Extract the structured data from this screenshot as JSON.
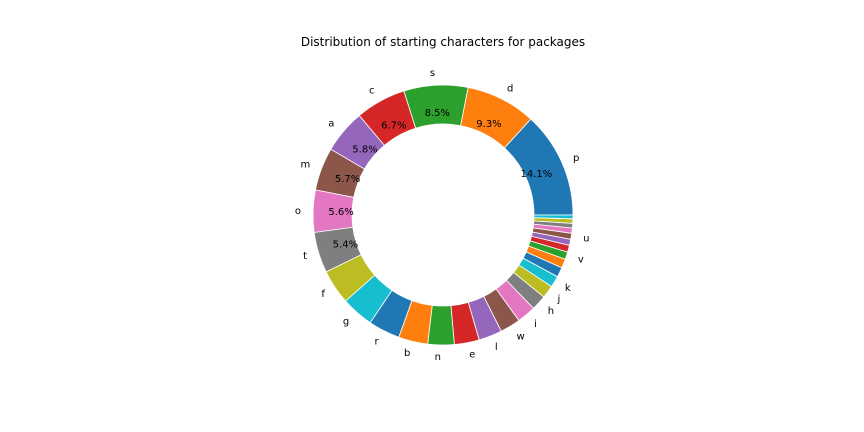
{
  "chart_data": {
    "type": "pie",
    "style": "donut",
    "title": "Distribution of starting characters for packages",
    "start_angle_deg": 0,
    "direction": "counterclockwise",
    "pct_label_min": 5.0,
    "colors": [
      "#1f77b4",
      "#ff7f0e",
      "#2ca02c",
      "#d62728",
      "#9467bd",
      "#8c564b",
      "#e377c2",
      "#7f7f7f",
      "#bcbd22",
      "#17becf"
    ],
    "slices": [
      {
        "label": "p",
        "value": 14.1
      },
      {
        "label": "d",
        "value": 9.3
      },
      {
        "label": "s",
        "value": 8.5
      },
      {
        "label": "c",
        "value": 6.7
      },
      {
        "label": "a",
        "value": 5.8
      },
      {
        "label": "m",
        "value": 5.7
      },
      {
        "label": "o",
        "value": 5.6
      },
      {
        "label": "t",
        "value": 5.4
      },
      {
        "label": "f",
        "value": 4.6
      },
      {
        "label": "g",
        "value": 4.3
      },
      {
        "label": "r",
        "value": 4.2
      },
      {
        "label": "b",
        "value": 3.9
      },
      {
        "label": "n",
        "value": 3.5
      },
      {
        "label": "e",
        "value": 3.3
      },
      {
        "label": "l",
        "value": 3.1
      },
      {
        "label": "w",
        "value": 2.7
      },
      {
        "label": "i",
        "value": 2.5
      },
      {
        "label": "h",
        "value": 2.0
      },
      {
        "label": "j",
        "value": 1.7
      },
      {
        "label": "k",
        "value": 1.5
      },
      {
        "label": "",
        "value": 1.3
      },
      {
        "label": "",
        "value": 1.2
      },
      {
        "label": "v",
        "value": 1.0
      },
      {
        "label": "",
        "value": 0.9
      },
      {
        "label": "",
        "value": 0.8
      },
      {
        "label": "u",
        "value": 0.8
      },
      {
        "label": "",
        "value": 0.7
      },
      {
        "label": "",
        "value": 0.6
      },
      {
        "label": "",
        "value": 0.6
      },
      {
        "label": "",
        "value": 0.5
      }
    ]
  }
}
